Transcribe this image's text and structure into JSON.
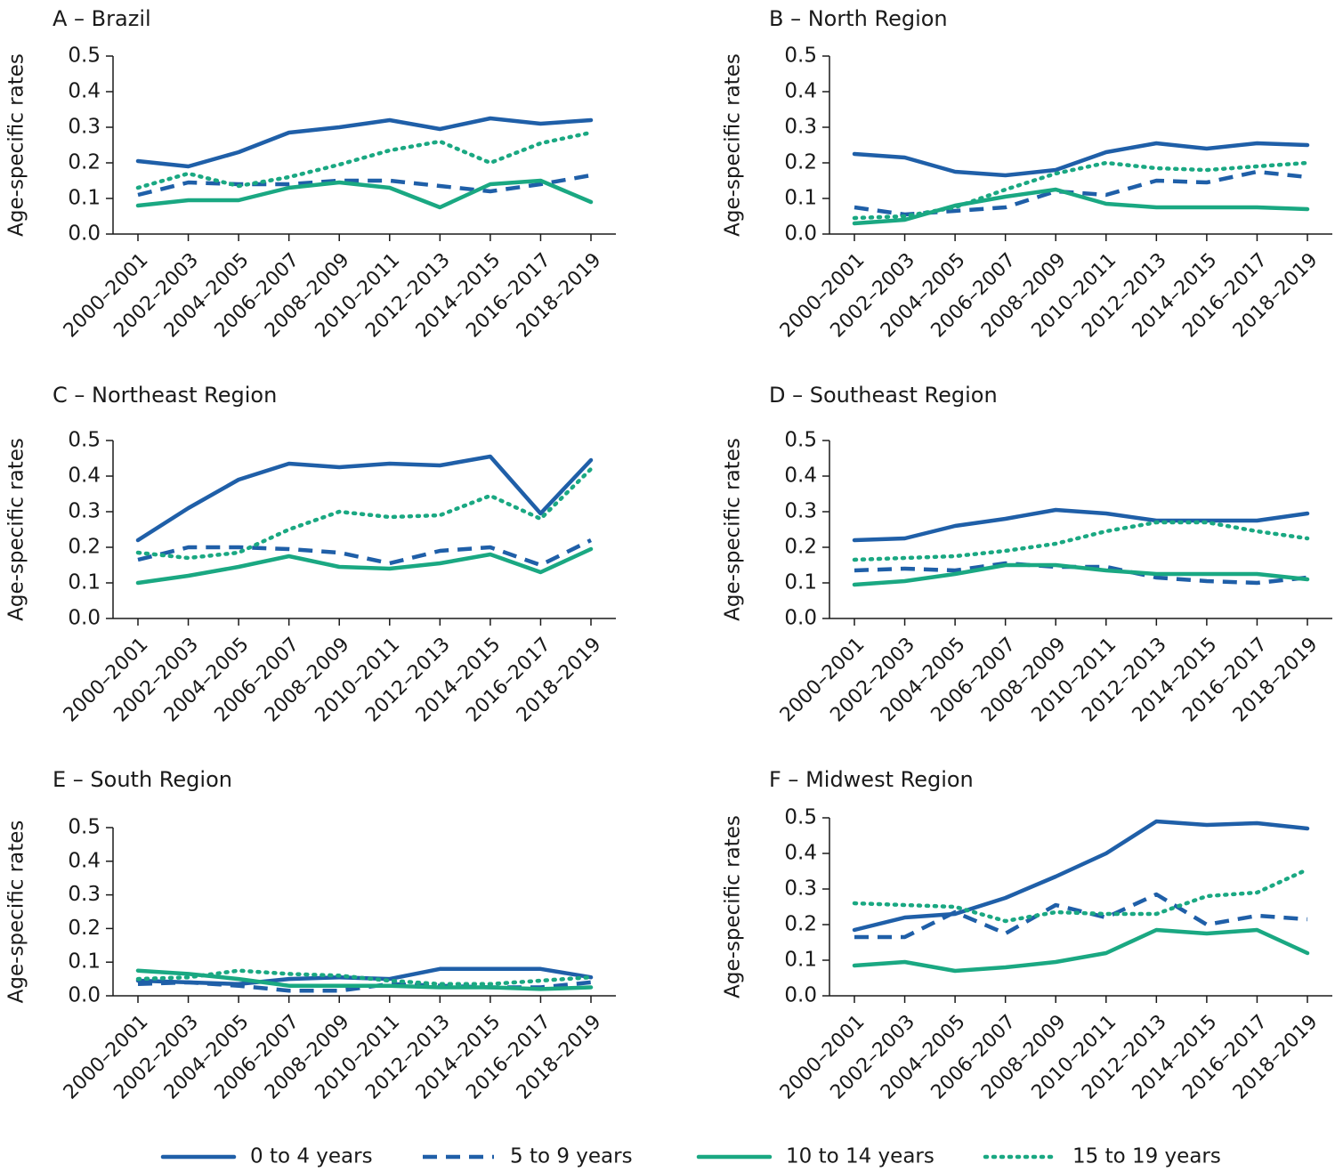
{
  "colors": {
    "dark_blue": "#1f5fa8",
    "green": "#1aa882",
    "axis": "#1a1a1a"
  },
  "legend": [
    {
      "name": "0 to 4 years",
      "color": "#1f5fa8",
      "style": "solid"
    },
    {
      "name": "5 to 9 years",
      "color": "#1f5fa8",
      "style": "dashed"
    },
    {
      "name": "10 to 14 years",
      "color": "#1aa882",
      "style": "solid"
    },
    {
      "name": "15 to 19 years",
      "color": "#1aa882",
      "style": "dotted"
    }
  ],
  "chart_data": [
    {
      "type": "line",
      "title": "A – Brazil",
      "ylabel": "Age-specific rates",
      "ylim": [
        0,
        0.5
      ],
      "yticks": [
        "0.0",
        "0.1",
        "0.2",
        "0.3",
        "0.4",
        "0.5"
      ],
      "categories": [
        "2000–2001",
        "2002–2003",
        "2004–2005",
        "2006–2007",
        "2008–2009",
        "2010–2011",
        "2012–2013",
        "2014–2015",
        "2016–2017",
        "2018–2019"
      ],
      "series": [
        {
          "name": "0 to 4 years",
          "values": [
            0.205,
            0.19,
            0.23,
            0.285,
            0.3,
            0.32,
            0.295,
            0.325,
            0.31,
            0.32
          ]
        },
        {
          "name": "5 to 9 years",
          "values": [
            0.11,
            0.145,
            0.14,
            0.14,
            0.15,
            0.15,
            0.135,
            0.12,
            0.14,
            0.165
          ]
        },
        {
          "name": "10 to 14 years",
          "values": [
            0.08,
            0.095,
            0.095,
            0.13,
            0.145,
            0.13,
            0.075,
            0.14,
            0.15,
            0.09
          ]
        },
        {
          "name": "15 to 19 years",
          "values": [
            0.13,
            0.17,
            0.135,
            0.16,
            0.195,
            0.235,
            0.26,
            0.2,
            0.255,
            0.285
          ]
        }
      ]
    },
    {
      "type": "line",
      "title": "B – North Region",
      "ylabel": "Age-specific rates",
      "ylim": [
        0,
        0.5
      ],
      "yticks": [
        "0.0",
        "0.1",
        "0.2",
        "0.3",
        "0.4",
        "0.5"
      ],
      "categories": [
        "2000–2001",
        "2002–2003",
        "2004–2005",
        "2006–2007",
        "2008–2009",
        "2010–2011",
        "2012–2013",
        "2014–2015",
        "2016–2017",
        "2018–2019"
      ],
      "series": [
        {
          "name": "0 to 4 years",
          "values": [
            0.225,
            0.215,
            0.175,
            0.165,
            0.18,
            0.23,
            0.255,
            0.24,
            0.255,
            0.25
          ]
        },
        {
          "name": "5 to 9 years",
          "values": [
            0.075,
            0.055,
            0.065,
            0.075,
            0.12,
            0.11,
            0.15,
            0.145,
            0.175,
            0.16
          ]
        },
        {
          "name": "10 to 14 years",
          "values": [
            0.03,
            0.04,
            0.08,
            0.105,
            0.125,
            0.085,
            0.075,
            0.075,
            0.075,
            0.07
          ]
        },
        {
          "name": "15 to 19 years",
          "values": [
            0.045,
            0.05,
            0.075,
            0.125,
            0.17,
            0.2,
            0.185,
            0.18,
            0.19,
            0.2
          ]
        }
      ]
    },
    {
      "type": "line",
      "title": "C – Northeast Region",
      "ylabel": "Age-specific rates",
      "ylim": [
        0,
        0.5
      ],
      "yticks": [
        "0.0",
        "0.1",
        "0.2",
        "0.3",
        "0.4",
        "0.5"
      ],
      "categories": [
        "2000–2001",
        "2002–2003",
        "2004–2005",
        "2006–2007",
        "2008–2009",
        "2010–2011",
        "2012–2013",
        "2014–2015",
        "2016–2017",
        "2018–2019"
      ],
      "series": [
        {
          "name": "0 to 4 years",
          "values": [
            0.22,
            0.31,
            0.39,
            0.435,
            0.425,
            0.435,
            0.43,
            0.455,
            0.295,
            0.445
          ]
        },
        {
          "name": "5 to 9 years",
          "values": [
            0.165,
            0.2,
            0.2,
            0.195,
            0.185,
            0.155,
            0.19,
            0.2,
            0.15,
            0.22
          ]
        },
        {
          "name": "10 to 14 years",
          "values": [
            0.1,
            0.12,
            0.145,
            0.175,
            0.145,
            0.14,
            0.155,
            0.18,
            0.13,
            0.195
          ]
        },
        {
          "name": "15 to 19 years",
          "values": [
            0.185,
            0.17,
            0.185,
            0.25,
            0.3,
            0.285,
            0.29,
            0.345,
            0.28,
            0.42
          ]
        }
      ]
    },
    {
      "type": "line",
      "title": "D – Southeast Region",
      "ylabel": "Age-specific rates",
      "ylim": [
        0,
        0.5
      ],
      "yticks": [
        "0.0",
        "0.1",
        "0.2",
        "0.3",
        "0.4",
        "0.5"
      ],
      "categories": [
        "2000–2001",
        "2002–2003",
        "2004–2005",
        "2006–2007",
        "2008–2009",
        "2010–2011",
        "2012–2013",
        "2014–2015",
        "2016–2017",
        "2018–2019"
      ],
      "series": [
        {
          "name": "0 to 4 years",
          "values": [
            0.22,
            0.225,
            0.26,
            0.28,
            0.305,
            0.295,
            0.275,
            0.275,
            0.275,
            0.295
          ]
        },
        {
          "name": "5 to 9 years",
          "values": [
            0.135,
            0.14,
            0.135,
            0.155,
            0.145,
            0.145,
            0.115,
            0.105,
            0.1,
            0.115
          ]
        },
        {
          "name": "10 to 14 years",
          "values": [
            0.095,
            0.105,
            0.125,
            0.15,
            0.15,
            0.135,
            0.125,
            0.125,
            0.125,
            0.11
          ]
        },
        {
          "name": "15 to 19 years",
          "values": [
            0.165,
            0.17,
            0.175,
            0.19,
            0.21,
            0.245,
            0.27,
            0.27,
            0.245,
            0.225
          ]
        }
      ]
    },
    {
      "type": "line",
      "title": "E – South Region",
      "ylabel": "Age-specific rates",
      "ylim": [
        0,
        0.5
      ],
      "yticks": [
        "0.0",
        "0.1",
        "0.2",
        "0.3",
        "0.4",
        "0.5"
      ],
      "categories": [
        "2000–2001",
        "2002–2003",
        "2004–2005",
        "2006–2007",
        "2008–2009",
        "2010–2011",
        "2012–2013",
        "2014–2015",
        "2016–2017",
        "2018–2019"
      ],
      "series": [
        {
          "name": "0 to 4 years",
          "values": [
            0.045,
            0.04,
            0.035,
            0.05,
            0.055,
            0.05,
            0.08,
            0.08,
            0.08,
            0.055
          ]
        },
        {
          "name": "5 to 9 years",
          "values": [
            0.035,
            0.04,
            0.03,
            0.015,
            0.015,
            0.035,
            0.03,
            0.025,
            0.025,
            0.04
          ]
        },
        {
          "name": "10 to 14 years",
          "values": [
            0.075,
            0.065,
            0.05,
            0.03,
            0.03,
            0.03,
            0.025,
            0.025,
            0.02,
            0.025
          ]
        },
        {
          "name": "15 to 19 years",
          "values": [
            0.05,
            0.055,
            0.075,
            0.065,
            0.06,
            0.045,
            0.035,
            0.035,
            0.045,
            0.055
          ]
        }
      ]
    },
    {
      "type": "line",
      "title": "F – Midwest Region",
      "ylabel": "Age-specific rates",
      "ylim": [
        0,
        0.5
      ],
      "yticks": [
        "0.0",
        "0.1",
        "0.2",
        "0.3",
        "0.4",
        "0.5"
      ],
      "categories": [
        "2000–2001",
        "2002–2003",
        "2004–2005",
        "2006–2007",
        "2008–2009",
        "2010–2011",
        "2012–2013",
        "2014–2015",
        "2016–2017",
        "2018–2019"
      ],
      "series": [
        {
          "name": "0 to 4 years",
          "values": [
            0.185,
            0.22,
            0.23,
            0.275,
            0.335,
            0.4,
            0.49,
            0.48,
            0.485,
            0.47
          ]
        },
        {
          "name": "5 to 9 years",
          "values": [
            0.165,
            0.165,
            0.235,
            0.175,
            0.255,
            0.22,
            0.285,
            0.2,
            0.225,
            0.215
          ]
        },
        {
          "name": "10 to 14 years",
          "values": [
            0.085,
            0.095,
            0.07,
            0.08,
            0.095,
            0.12,
            0.185,
            0.175,
            0.185,
            0.12
          ]
        },
        {
          "name": "15 to 19 years",
          "values": [
            0.26,
            0.255,
            0.25,
            0.21,
            0.235,
            0.23,
            0.23,
            0.28,
            0.29,
            0.355
          ]
        }
      ]
    }
  ]
}
